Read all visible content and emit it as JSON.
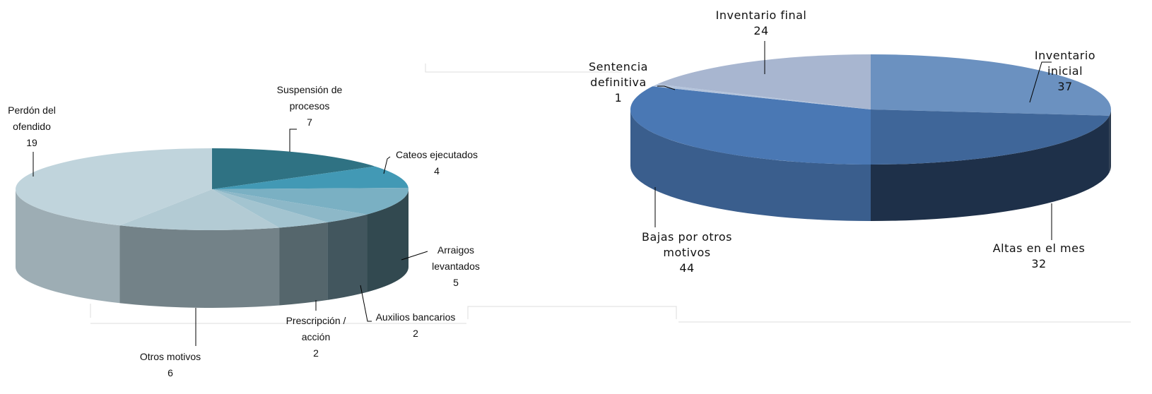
{
  "chart_data": [
    {
      "type": "pie",
      "categories": [
        "Suspensión de procesos",
        "Cateos ejecutados",
        "Arraigos levantados",
        "Auxilios bancarios",
        "Prescripción / acción",
        "Otros motivos",
        "Perdón del ofendido"
      ],
      "values": [
        7,
        4,
        5,
        2,
        2,
        6,
        19
      ],
      "colors": [
        "#2f7283",
        "#4299b5",
        "#7ab0c3",
        "#8db8c8",
        "#a3c4d0",
        "#b3cbd4",
        "#c0d4dc"
      ]
    },
    {
      "type": "pie",
      "categories": [
        "Inventario inicial",
        "Altas en el mes",
        "Bajas por otros motivos",
        "Sentencia definitiva",
        "Inventario final"
      ],
      "values": [
        37,
        32,
        44,
        1,
        24
      ],
      "colors": [
        "#6b91c0",
        "#3f6699",
        "#4a78b4",
        "#b4c4dc",
        "#a8b6d0"
      ]
    }
  ]
}
